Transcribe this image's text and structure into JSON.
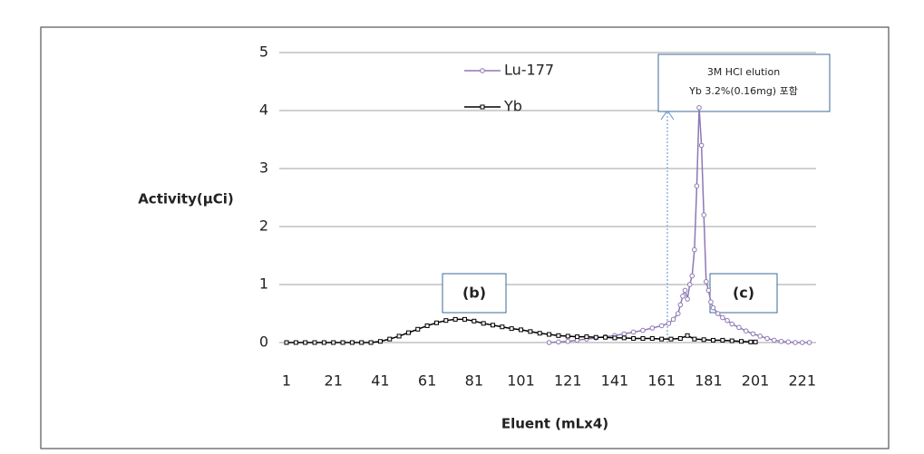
{
  "chart_data": {
    "type": "line",
    "y_label": "Activity(μCi)",
    "x_label": "Eluent (mLx4)",
    "xlim": [
      0.5,
      226.5
    ],
    "xticks": [
      1,
      21,
      41,
      61,
      81,
      101,
      121,
      141,
      161,
      181,
      201,
      221
    ],
    "ylim": [
      0,
      5
    ],
    "yticks": [
      0,
      1,
      2,
      3,
      4,
      5
    ],
    "grid": true,
    "series": [
      {
        "name": "Lu-177",
        "color": "#8e78b4",
        "x": [
          113,
          117,
          121,
          125,
          129,
          133,
          137,
          141,
          145,
          149,
          153,
          157,
          161,
          164,
          166,
          168,
          169,
          170,
          171,
          172,
          173,
          174,
          175,
          176,
          177,
          178,
          179,
          180,
          181,
          182,
          183,
          185,
          187,
          189,
          191,
          194,
          197,
          200,
          203,
          206,
          209,
          212,
          215,
          218,
          221,
          224
        ],
        "values": [
          0.0,
          0.01,
          0.02,
          0.04,
          0.06,
          0.08,
          0.1,
          0.12,
          0.15,
          0.18,
          0.21,
          0.25,
          0.29,
          0.33,
          0.4,
          0.5,
          0.65,
          0.8,
          0.9,
          0.75,
          1.0,
          1.15,
          1.6,
          2.7,
          4.05,
          3.4,
          2.2,
          1.05,
          0.9,
          0.7,
          0.6,
          0.5,
          0.43,
          0.38,
          0.32,
          0.26,
          0.2,
          0.15,
          0.11,
          0.07,
          0.04,
          0.02,
          0.01,
          0.0,
          0.0,
          0.0
        ]
      },
      {
        "name": "Yb",
        "color": "#000000",
        "x": [
          1,
          5,
          9,
          13,
          17,
          21,
          25,
          29,
          33,
          37,
          41,
          45,
          49,
          53,
          57,
          61,
          65,
          69,
          73,
          77,
          81,
          85,
          89,
          93,
          97,
          101,
          105,
          109,
          113,
          117,
          121,
          125,
          129,
          133,
          137,
          141,
          145,
          149,
          153,
          157,
          161,
          165,
          169,
          172,
          175,
          179,
          183,
          187,
          191,
          195,
          199,
          201
        ],
        "values": [
          0,
          0,
          0,
          0,
          0,
          0,
          0,
          0,
          0,
          0,
          0.02,
          0.06,
          0.11,
          0.17,
          0.23,
          0.29,
          0.34,
          0.38,
          0.4,
          0.4,
          0.37,
          0.33,
          0.3,
          0.27,
          0.24,
          0.22,
          0.19,
          0.16,
          0.14,
          0.12,
          0.11,
          0.1,
          0.1,
          0.09,
          0.09,
          0.08,
          0.08,
          0.07,
          0.07,
          0.07,
          0.06,
          0.06,
          0.07,
          0.12,
          0.06,
          0.05,
          0.04,
          0.04,
          0.03,
          0.02,
          0.01,
          0.01
        ]
      }
    ],
    "annotations": [
      "(b)",
      "(c)",
      "3M HCl elution",
      "Yb 3.2%(0.16mg) 포함"
    ]
  }
}
